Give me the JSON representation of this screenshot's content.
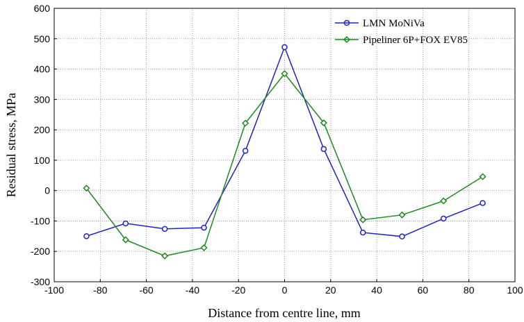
{
  "chart_data": {
    "type": "line",
    "title": "",
    "xlabel": "Distance from centre line, mm",
    "ylabel": "Residual stress, MPa",
    "xlim": [
      -100,
      100
    ],
    "ylim": [
      -300,
      600
    ],
    "xticks": [
      -100,
      -80,
      -60,
      -40,
      -20,
      0,
      20,
      40,
      60,
      80,
      100
    ],
    "yticks": [
      -300,
      -200,
      -100,
      0,
      100,
      200,
      300,
      400,
      500,
      600
    ],
    "grid": true,
    "legend_position": "top-right",
    "series": [
      {
        "name": "LMN MoNiVa",
        "color": "#2020c8",
        "marker": "circle",
        "x": [
          -86,
          -69,
          -52,
          -35,
          -17,
          0,
          17,
          34,
          51,
          69,
          86
        ],
        "y": [
          -150,
          -108,
          -126,
          -122,
          131,
          472,
          137,
          -138,
          -151,
          -92,
          -41
        ]
      },
      {
        "name": "Pipeliner 6P+FOX EV85",
        "color": "#1a8a1a",
        "marker": "diamond",
        "x": [
          -86,
          -69,
          -52,
          -35,
          -17,
          0,
          17,
          34,
          51,
          69,
          86
        ],
        "y": [
          8,
          -162,
          -215,
          -188,
          222,
          385,
          223,
          -96,
          -80,
          -34,
          46
        ]
      }
    ]
  }
}
